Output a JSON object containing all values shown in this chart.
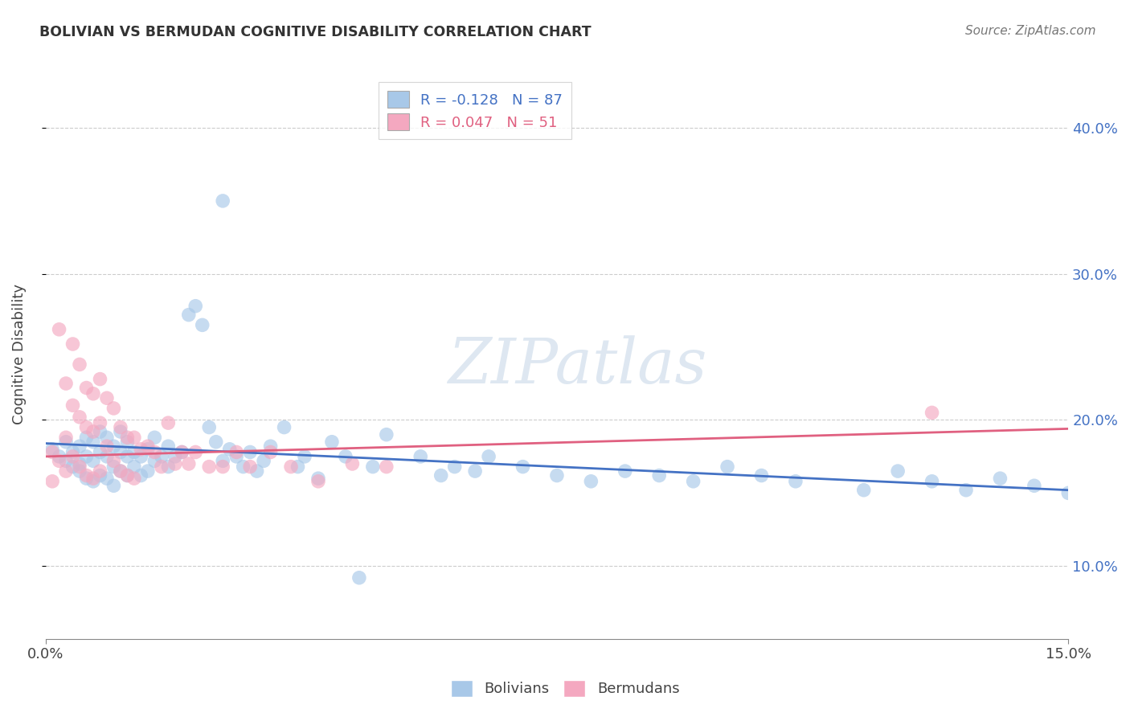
{
  "title": "BOLIVIAN VS BERMUDAN COGNITIVE DISABILITY CORRELATION CHART",
  "source": "Source: ZipAtlas.com",
  "ylabel": "Cognitive Disability",
  "ytick_labels": [
    "10.0%",
    "20.0%",
    "30.0%",
    "40.0%"
  ],
  "ytick_values": [
    0.1,
    0.2,
    0.3,
    0.4
  ],
  "xlim": [
    0.0,
    0.15
  ],
  "ylim": [
    0.05,
    0.44
  ],
  "bolivian_color": "#a8c8e8",
  "bermudan_color": "#f4a8c0",
  "bolivian_line_color": "#4472c4",
  "bermudan_line_color": "#e06080",
  "watermark": "ZIPatlas",
  "bolivian_scatter_x": [
    0.001,
    0.002,
    0.003,
    0.003,
    0.004,
    0.004,
    0.005,
    0.005,
    0.005,
    0.006,
    0.006,
    0.006,
    0.007,
    0.007,
    0.007,
    0.008,
    0.008,
    0.008,
    0.009,
    0.009,
    0.009,
    0.01,
    0.01,
    0.01,
    0.011,
    0.011,
    0.011,
    0.012,
    0.012,
    0.012,
    0.013,
    0.013,
    0.014,
    0.014,
    0.015,
    0.015,
    0.016,
    0.016,
    0.017,
    0.018,
    0.018,
    0.019,
    0.02,
    0.021,
    0.022,
    0.023,
    0.024,
    0.025,
    0.026,
    0.027,
    0.028,
    0.029,
    0.03,
    0.031,
    0.032,
    0.033,
    0.035,
    0.037,
    0.038,
    0.04,
    0.042,
    0.044,
    0.046,
    0.048,
    0.05,
    0.055,
    0.058,
    0.06,
    0.063,
    0.065,
    0.07,
    0.075,
    0.08,
    0.085,
    0.09,
    0.095,
    0.1,
    0.105,
    0.11,
    0.12,
    0.125,
    0.13,
    0.135,
    0.14,
    0.145,
    0.15,
    0.026
  ],
  "bolivian_scatter_y": [
    0.18,
    0.175,
    0.185,
    0.172,
    0.178,
    0.168,
    0.182,
    0.17,
    0.165,
    0.188,
    0.175,
    0.16,
    0.185,
    0.172,
    0.158,
    0.192,
    0.178,
    0.162,
    0.188,
    0.175,
    0.16,
    0.182,
    0.168,
    0.155,
    0.178,
    0.165,
    0.192,
    0.175,
    0.162,
    0.185,
    0.178,
    0.168,
    0.175,
    0.162,
    0.18,
    0.165,
    0.188,
    0.172,
    0.175,
    0.182,
    0.168,
    0.175,
    0.178,
    0.272,
    0.278,
    0.265,
    0.195,
    0.185,
    0.172,
    0.18,
    0.175,
    0.168,
    0.178,
    0.165,
    0.172,
    0.182,
    0.195,
    0.168,
    0.175,
    0.16,
    0.185,
    0.175,
    0.092,
    0.168,
    0.19,
    0.175,
    0.162,
    0.168,
    0.165,
    0.175,
    0.168,
    0.162,
    0.158,
    0.165,
    0.162,
    0.158,
    0.168,
    0.162,
    0.158,
    0.152,
    0.165,
    0.158,
    0.152,
    0.16,
    0.155,
    0.15,
    0.35
  ],
  "bermudan_scatter_x": [
    0.001,
    0.001,
    0.002,
    0.002,
    0.003,
    0.003,
    0.003,
    0.004,
    0.004,
    0.004,
    0.005,
    0.005,
    0.005,
    0.006,
    0.006,
    0.006,
    0.007,
    0.007,
    0.007,
    0.008,
    0.008,
    0.008,
    0.009,
    0.009,
    0.01,
    0.01,
    0.011,
    0.011,
    0.012,
    0.012,
    0.013,
    0.013,
    0.014,
    0.015,
    0.016,
    0.017,
    0.018,
    0.019,
    0.02,
    0.021,
    0.022,
    0.024,
    0.026,
    0.028,
    0.03,
    0.033,
    0.036,
    0.04,
    0.045,
    0.05,
    0.13
  ],
  "bermudan_scatter_y": [
    0.178,
    0.158,
    0.262,
    0.172,
    0.225,
    0.188,
    0.165,
    0.252,
    0.21,
    0.175,
    0.238,
    0.202,
    0.168,
    0.222,
    0.195,
    0.162,
    0.218,
    0.192,
    0.16,
    0.228,
    0.198,
    0.165,
    0.215,
    0.182,
    0.208,
    0.172,
    0.195,
    0.165,
    0.188,
    0.162,
    0.188,
    0.16,
    0.18,
    0.182,
    0.178,
    0.168,
    0.198,
    0.17,
    0.178,
    0.17,
    0.178,
    0.168,
    0.168,
    0.178,
    0.168,
    0.178,
    0.168,
    0.158,
    0.17,
    0.168,
    0.205
  ],
  "bolivian_line_x0": 0.0,
  "bolivian_line_x1": 0.15,
  "bolivian_line_y0": 0.184,
  "bolivian_line_y1": 0.152,
  "bermudan_line_x0": 0.0,
  "bermudan_line_x1": 0.15,
  "bermudan_line_y0": 0.175,
  "bermudan_line_y1": 0.194
}
